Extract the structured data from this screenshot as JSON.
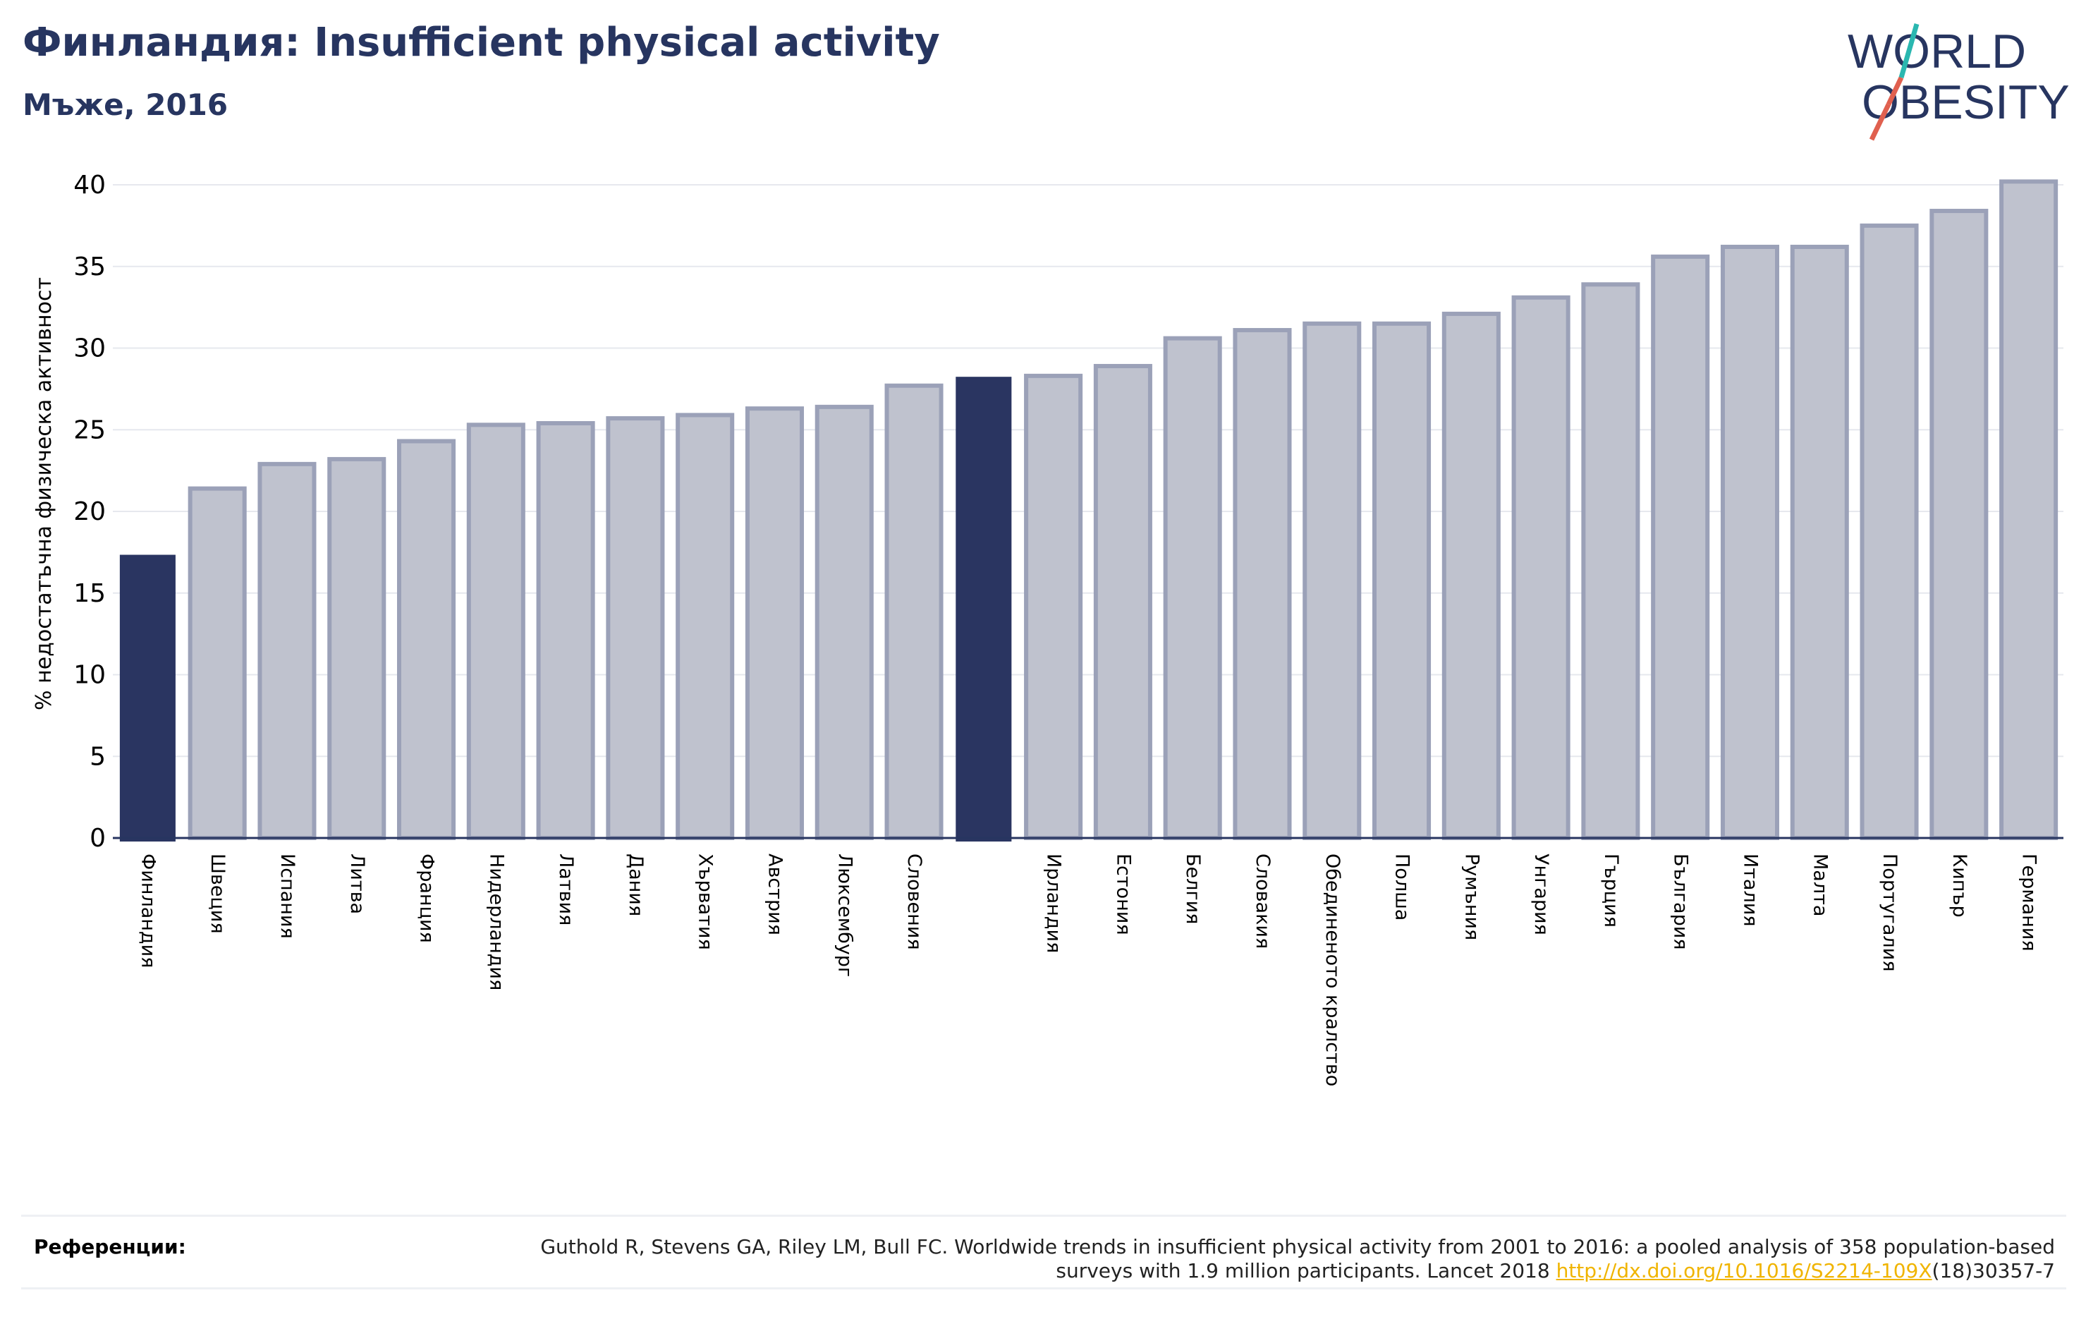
{
  "header": {
    "title": "Финландия: Insufficient physical activity",
    "subtitle": "Мъже, 2016"
  },
  "logo": {
    "line1": "WORLD",
    "line2": "OBESITY"
  },
  "colors": {
    "highlight": "#2a3561",
    "bar": "#bfc2ce",
    "bar_stroke": "#9ba1b8",
    "axis": "#273560",
    "accent_teal": "#2ab7b0",
    "accent_red": "#e0604f"
  },
  "chart_data": {
    "type": "bar",
    "ylabel": "% недостатъчна физическа активност",
    "ylim": [
      0,
      42
    ],
    "yticks": [
      0,
      5,
      10,
      15,
      20,
      25,
      30,
      35,
      40
    ],
    "grid": true,
    "categories": [
      "Финландия",
      "Швеция",
      "Испания",
      "Литва",
      "Франция",
      "Нидерландия",
      "Латвия",
      "Дания",
      "Хърватия",
      "Австрия",
      "Люксембург",
      "Словения",
      "",
      "Ирландия",
      "Естония",
      "Белгия",
      "Словакия",
      "Обединеното кралство",
      "Полша",
      "Румъния",
      "Унгария",
      "Гърция",
      "България",
      "Италия",
      "Малта",
      "Португалия",
      "Кипър",
      "Германия"
    ],
    "values": [
      17.3,
      21.4,
      22.9,
      23.2,
      24.3,
      25.3,
      25.4,
      25.7,
      25.9,
      26.3,
      26.4,
      27.7,
      28.2,
      28.3,
      28.9,
      30.6,
      31.1,
      31.5,
      31.5,
      32.1,
      33.1,
      33.9,
      35.6,
      36.2,
      36.2,
      37.5,
      38.4,
      40.2
    ],
    "highlight": [
      0,
      12
    ]
  },
  "references": {
    "label": "Референции:",
    "text_before": "Guthold R, Stevens GA, Riley LM, Bull FC. Worldwide trends in insufficient physical activity from 2001 to 2016: a pooled analysis of 358 population-based surveys with 1.9 million participants. Lancet 2018 ",
    "link": "http://dx.doi.org/10.1016/S2214-109X",
    "text_after": "(18)30357-7"
  }
}
